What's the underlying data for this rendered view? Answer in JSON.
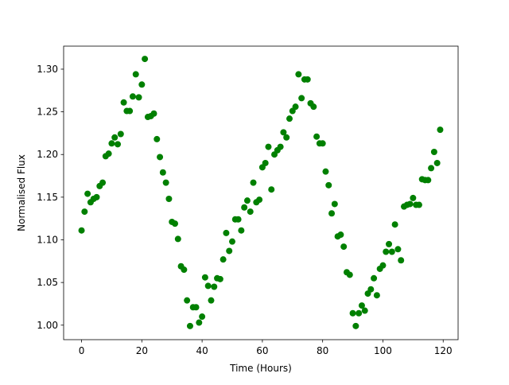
{
  "chart_data": {
    "type": "scatter",
    "xlabel": "Time (Hours)",
    "ylabel": "Normalised Flux",
    "color": "#008000",
    "x": [
      0,
      1,
      2,
      3,
      4,
      5,
      6,
      7,
      8,
      9,
      10,
      11,
      12,
      13,
      14,
      15,
      16,
      17,
      18,
      19,
      20,
      21,
      22,
      23,
      24,
      25,
      26,
      27,
      28,
      29,
      30,
      31,
      32,
      33,
      34,
      35,
      36,
      37,
      38,
      39,
      40,
      41,
      42,
      43,
      44,
      45,
      46,
      47,
      48,
      49,
      50,
      51,
      52,
      53,
      54,
      55,
      56,
      57,
      58,
      59,
      60,
      61,
      62,
      63,
      64,
      65,
      66,
      67,
      68,
      69,
      70,
      71,
      72,
      73,
      74,
      75,
      76,
      77,
      78,
      79,
      80,
      81,
      82,
      83,
      84,
      85,
      86,
      87,
      88,
      89,
      90,
      91,
      92,
      93,
      94,
      95,
      96,
      97,
      98,
      99,
      100,
      101,
      102,
      103,
      104,
      105,
      106,
      107,
      108,
      109,
      110,
      111,
      112,
      113,
      114,
      115,
      116,
      117,
      118,
      119
    ],
    "values": [
      1.111,
      1.133,
      1.154,
      1.144,
      1.148,
      1.15,
      1.163,
      1.167,
      1.198,
      1.201,
      1.213,
      1.22,
      1.212,
      1.224,
      1.261,
      1.251,
      1.251,
      1.268,
      1.294,
      1.267,
      1.282,
      1.312,
      1.244,
      1.245,
      1.248,
      1.218,
      1.197,
      1.179,
      1.167,
      1.148,
      1.121,
      1.119,
      1.101,
      1.069,
      1.065,
      1.029,
      0.999,
      1.021,
      1.021,
      1.003,
      1.01,
      1.056,
      1.046,
      1.029,
      1.045,
      1.055,
      1.054,
      1.077,
      1.108,
      1.087,
      1.098,
      1.124,
      1.124,
      1.111,
      1.138,
      1.146,
      1.133,
      1.167,
      1.144,
      1.147,
      1.185,
      1.19,
      1.209,
      1.159,
      1.2,
      1.205,
      1.209,
      1.226,
      1.22,
      1.242,
      1.251,
      1.256,
      1.294,
      1.266,
      1.288,
      1.288,
      1.26,
      1.256,
      1.221,
      1.213,
      1.213,
      1.18,
      1.164,
      1.131,
      1.142,
      1.104,
      1.106,
      1.092,
      1.062,
      1.059,
      1.014,
      0.999,
      1.014,
      1.023,
      1.017,
      1.037,
      1.042,
      1.055,
      1.035,
      1.066,
      1.07,
      1.086,
      1.095,
      1.086,
      1.118,
      1.089,
      1.076,
      1.139,
      1.141,
      1.142,
      1.149,
      1.141,
      1.141,
      1.171,
      1.17,
      1.17,
      1.184,
      1.203,
      1.19,
      1.229
    ],
    "xlim": [
      -5.95,
      124.95
    ],
    "ylim": [
      0.983,
      1.327
    ],
    "xticks": [
      0,
      20,
      40,
      60,
      80,
      100,
      120
    ],
    "yticks": [
      {
        "value": 1.0,
        "label": "1.00"
      },
      {
        "value": 1.05,
        "label": "1.05"
      },
      {
        "value": 1.1,
        "label": "1.10"
      },
      {
        "value": 1.15,
        "label": "1.15"
      },
      {
        "value": 1.2,
        "label": "1.20"
      },
      {
        "value": 1.25,
        "label": "1.25"
      },
      {
        "value": 1.3,
        "label": "1.30"
      }
    ]
  }
}
